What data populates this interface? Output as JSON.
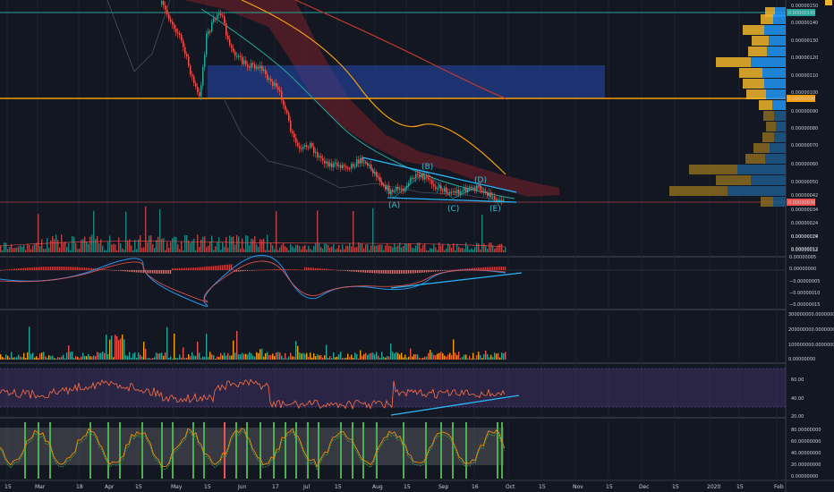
{
  "chart_data": [
    {
      "type": "candlestick",
      "pane": "price",
      "ylim": [
        1e-07,
        1.55e-06
      ],
      "y_tick_labels": [
        "0.00000150",
        "0.00000140",
        "0.00000130",
        "0.00000120",
        "0.00000110",
        "0.00000100",
        "0.00000090",
        "0.00000080",
        "0.00000070",
        "0.00000060",
        "0.00000050",
        "0.00000042",
        "0.00000034",
        "0.00000024",
        "0.00000019",
        "0.00000015",
        "0.00000012"
      ],
      "price_badges": [
        {
          "label": "0.00000145",
          "color": "#26a69a"
        },
        {
          "label": "0.00000098",
          "color": "#f59e0b"
        },
        {
          "label": "0.00000038",
          "color": "#ef5350"
        }
      ],
      "wave_labels": [
        "(A)",
        "(B)",
        "(C)",
        "(D)",
        "(E)"
      ],
      "volume_profile": true,
      "supply_zone_color": "#2448b2",
      "moving_average_colors": [
        "#26a69a",
        "#f59e0b",
        "#c0392b"
      ]
    },
    {
      "type": "line",
      "pane": "macd",
      "y_tick_labels": [
        "0.00000005",
        "0.00000000",
        "−0.00000005",
        "−0.00000010",
        "−0.00000015"
      ]
    },
    {
      "type": "bar",
      "pane": "volume",
      "y_tick_labels": [
        "300000000.00000000",
        "200000000.00000000",
        "100000000.00000000",
        "0.00000000"
      ]
    },
    {
      "type": "line",
      "pane": "rsi",
      "y_tick_labels": [
        "60.00",
        "40.00",
        "20.00"
      ],
      "band_color": "#7e57c2"
    },
    {
      "type": "line",
      "pane": "stochastic",
      "y_tick_labels": [
        "80.00000000",
        "60.00000000",
        "40.00000000",
        "20.00000000",
        "0.00000000"
      ]
    }
  ],
  "x_axis": {
    "labels": [
      "15",
      "Mar",
      "18",
      "Apr",
      "15",
      "May",
      "15",
      "Jun",
      "17",
      "Jul",
      "15",
      "Aug",
      "15",
      "Sep",
      "16",
      "Oct",
      "15",
      "Nov",
      "15",
      "Dec",
      "15",
      "2020",
      "15",
      "Feb"
    ]
  }
}
